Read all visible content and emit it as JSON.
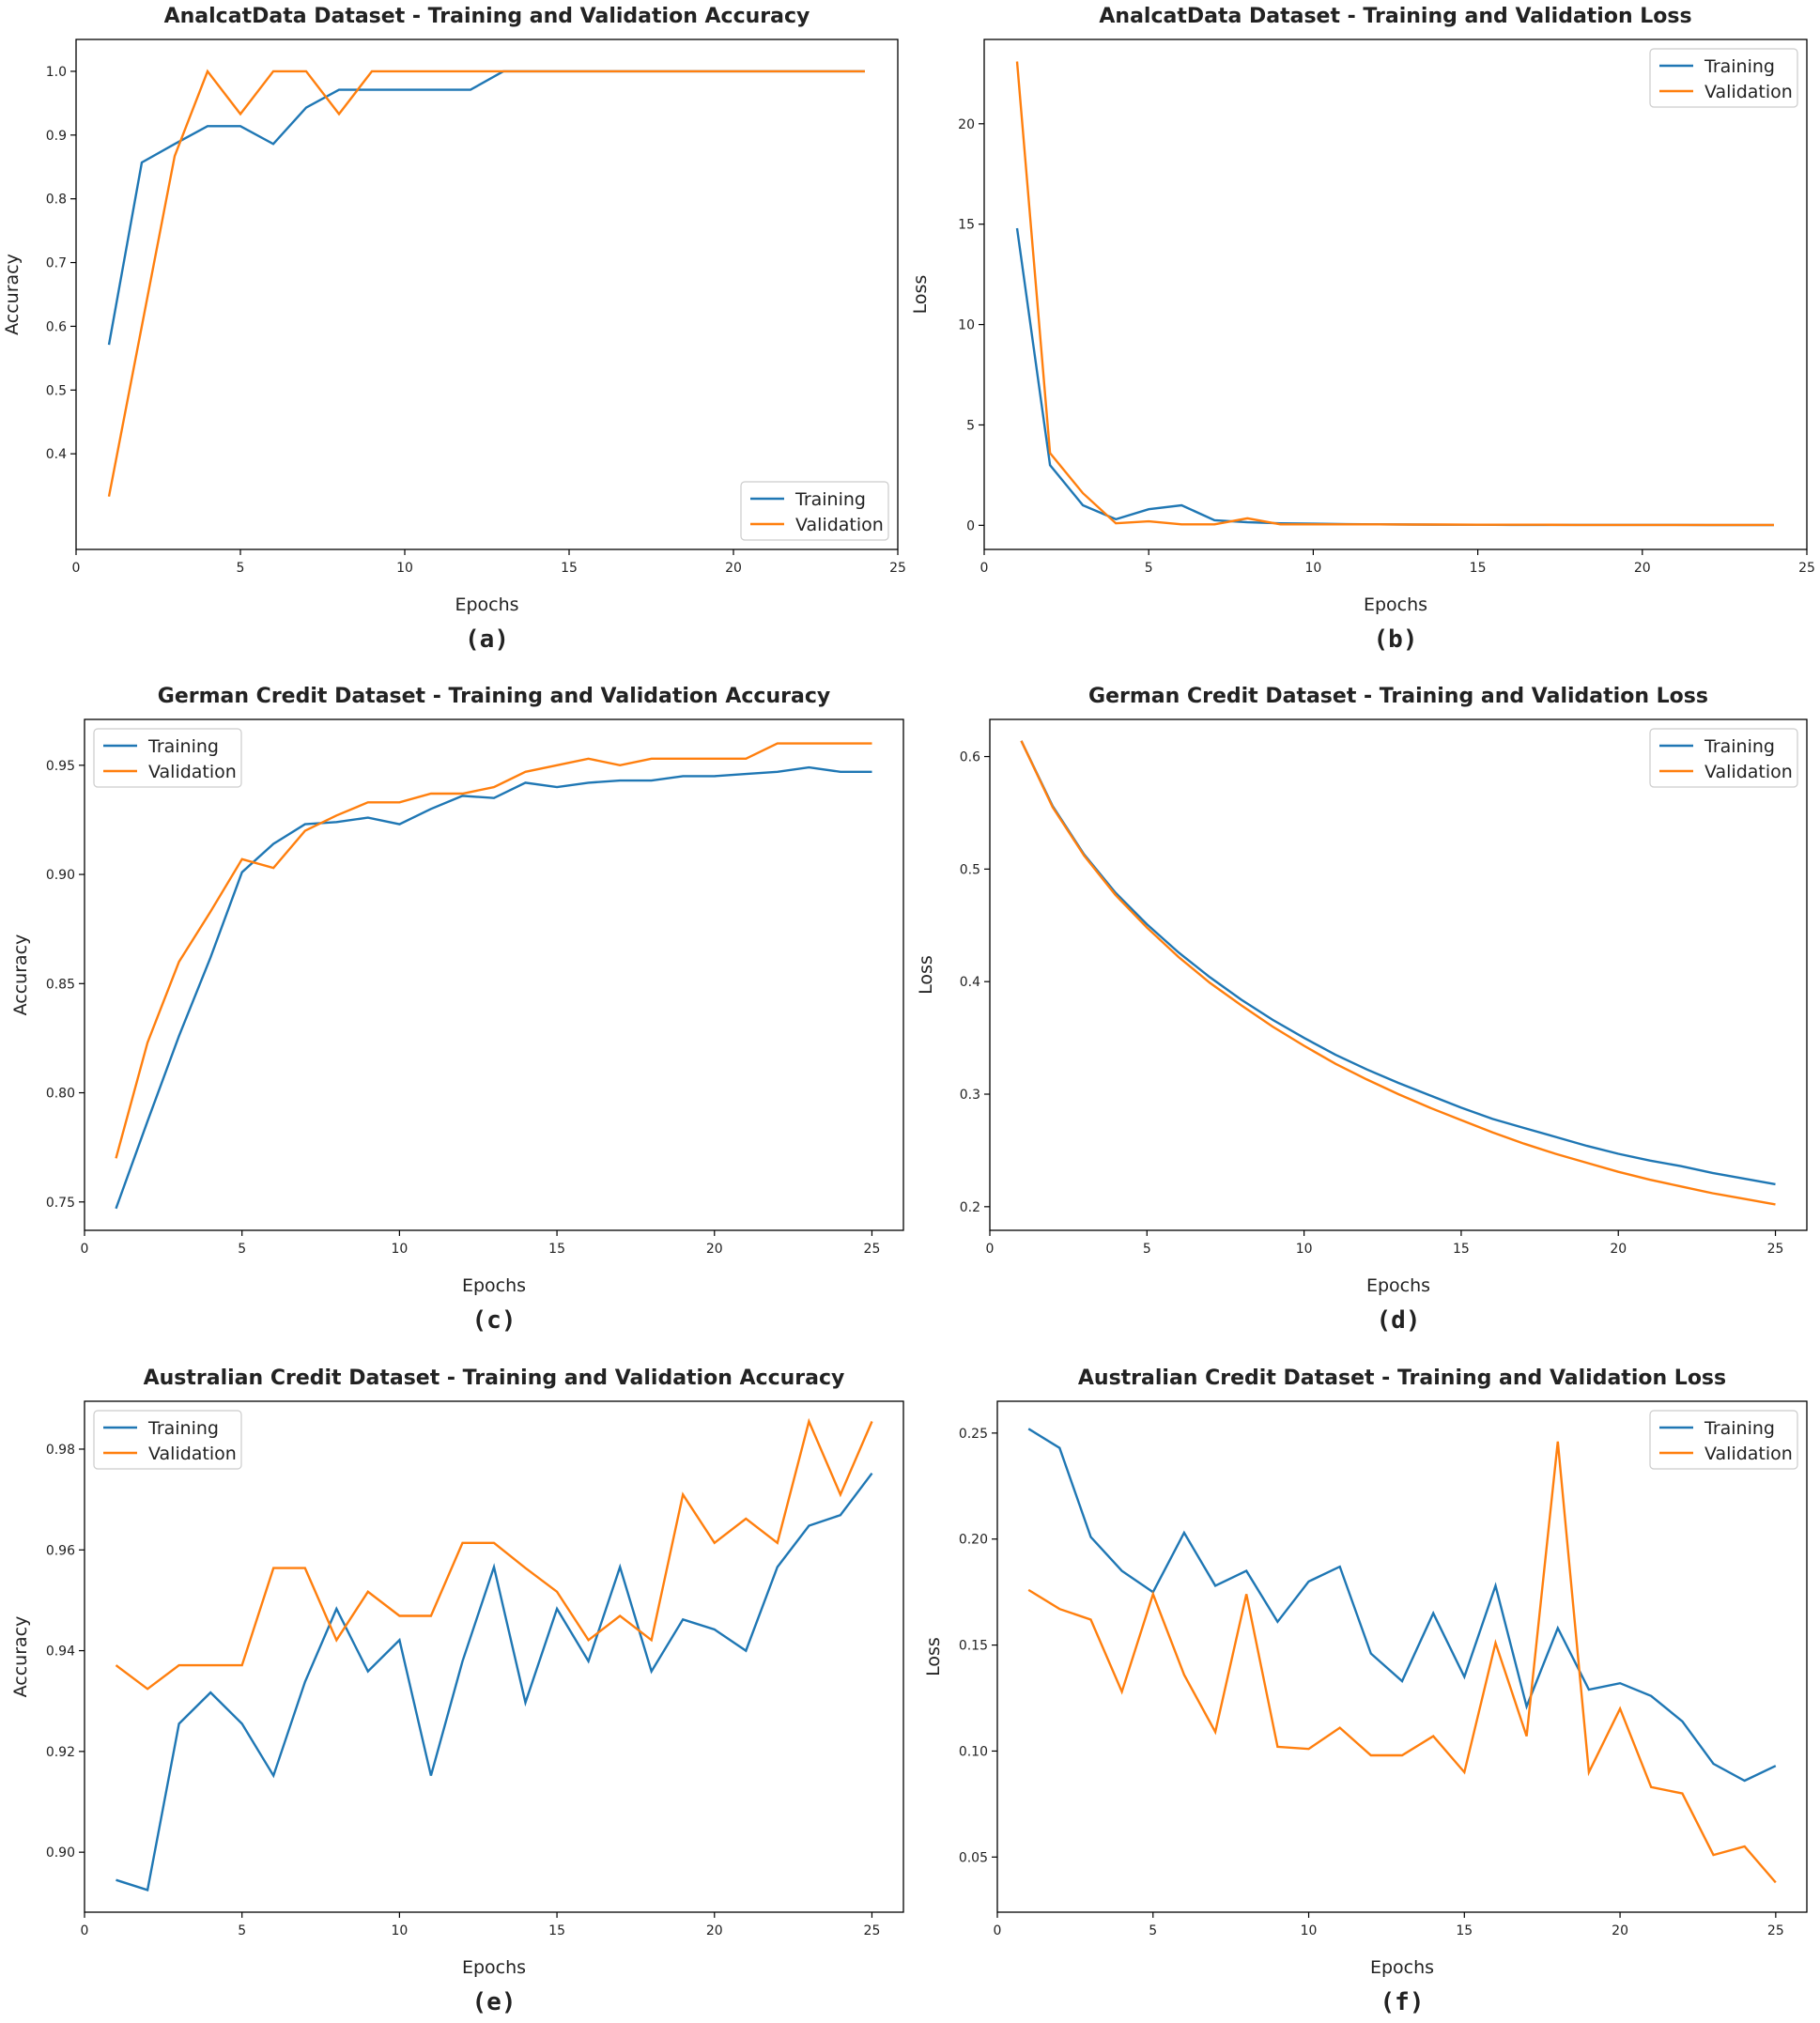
{
  "colors": {
    "training": "#1f77b4",
    "validation": "#ff7f0e",
    "axis": "#000000",
    "text": "#222222"
  },
  "chart_data": [
    {
      "id": "a",
      "type": "line",
      "panel_label": "(a)",
      "title": "AnalcatData Dataset - Training and Validation Accuracy",
      "xlabel": "Epochs",
      "ylabel": "Accuracy",
      "xlim": [
        0,
        25
      ],
      "ylim": [
        0.25,
        1.05
      ],
      "xticks": [
        0,
        5,
        10,
        15,
        20,
        25
      ],
      "yticks": [
        0.4,
        0.5,
        0.6,
        0.7,
        0.8,
        0.9,
        1.0
      ],
      "ytick_decimals": 1,
      "legend_loc": "lower-right",
      "x": [
        1,
        2,
        3,
        4,
        5,
        6,
        7,
        8,
        9,
        10,
        11,
        12,
        13,
        14,
        15,
        16,
        17,
        18,
        19,
        20,
        21,
        22,
        23,
        24
      ],
      "series": [
        {
          "name": "Training",
          "color_key": "training",
          "values": [
            0.571,
            0.857,
            0.886,
            0.914,
            0.914,
            0.886,
            0.943,
            0.971,
            0.971,
            0.971,
            0.971,
            0.971,
            1.0,
            1.0,
            1.0,
            1.0,
            1.0,
            1.0,
            1.0,
            1.0,
            1.0,
            1.0,
            1.0,
            1.0
          ]
        },
        {
          "name": "Validation",
          "color_key": "validation",
          "values": [
            0.333,
            0.6,
            0.867,
            1.0,
            0.933,
            1.0,
            1.0,
            0.933,
            1.0,
            1.0,
            1.0,
            1.0,
            1.0,
            1.0,
            1.0,
            1.0,
            1.0,
            1.0,
            1.0,
            1.0,
            1.0,
            1.0,
            1.0,
            1.0
          ]
        }
      ]
    },
    {
      "id": "b",
      "type": "line",
      "panel_label": "(b)",
      "title": "AnalcatData Dataset - Training and Validation Loss",
      "xlabel": "Epochs",
      "ylabel": "Loss",
      "xlim": [
        0,
        25
      ],
      "ylim": [
        -1.2,
        24.2
      ],
      "xticks": [
        0,
        5,
        10,
        15,
        20,
        25
      ],
      "yticks": [
        0,
        5,
        10,
        15,
        20
      ],
      "ytick_decimals": 0,
      "legend_loc": "top-right",
      "x": [
        1,
        2,
        3,
        4,
        5,
        6,
        7,
        8,
        9,
        10,
        11,
        12,
        13,
        14,
        15,
        16,
        17,
        18,
        19,
        20,
        21,
        22,
        23,
        24
      ],
      "series": [
        {
          "name": "Training",
          "color_key": "training",
          "values": [
            14.8,
            3.0,
            1.0,
            0.3,
            0.8,
            1.0,
            0.25,
            0.15,
            0.1,
            0.08,
            0.06,
            0.05,
            0.04,
            0.03,
            0.03,
            0.02,
            0.02,
            0.02,
            0.02,
            0.02,
            0.02,
            0.01,
            0.01,
            0.01
          ]
        },
        {
          "name": "Validation",
          "color_key": "validation",
          "values": [
            23.1,
            3.6,
            1.6,
            0.1,
            0.2,
            0.05,
            0.05,
            0.35,
            0.05,
            0.05,
            0.05,
            0.05,
            0.04,
            0.04,
            0.03,
            0.03,
            0.03,
            0.02,
            0.02,
            0.02,
            0.02,
            0.02,
            0.02,
            0.02
          ]
        }
      ]
    },
    {
      "id": "c",
      "type": "line",
      "panel_label": "(c)",
      "title": "German Credit Dataset - Training and Validation Accuracy",
      "xlabel": "Epochs",
      "ylabel": "Accuracy",
      "xlim": [
        0,
        26
      ],
      "ylim": [
        0.737,
        0.971
      ],
      "xticks": [
        0,
        5,
        10,
        15,
        20,
        25
      ],
      "yticks": [
        0.75,
        0.8,
        0.85,
        0.9,
        0.95
      ],
      "ytick_decimals": 2,
      "legend_loc": "top-left",
      "x": [
        1,
        2,
        3,
        4,
        5,
        6,
        7,
        8,
        9,
        10,
        11,
        12,
        13,
        14,
        15,
        16,
        17,
        18,
        19,
        20,
        21,
        22,
        23,
        24,
        25
      ],
      "series": [
        {
          "name": "Training",
          "color_key": "training",
          "values": [
            0.747,
            0.787,
            0.826,
            0.862,
            0.901,
            0.914,
            0.923,
            0.924,
            0.926,
            0.923,
            0.93,
            0.936,
            0.935,
            0.942,
            0.94,
            0.942,
            0.943,
            0.943,
            0.945,
            0.945,
            0.946,
            0.947,
            0.949,
            0.947,
            0.947
          ]
        },
        {
          "name": "Validation",
          "color_key": "validation",
          "values": [
            0.77,
            0.823,
            0.86,
            0.883,
            0.907,
            0.903,
            0.92,
            0.927,
            0.933,
            0.933,
            0.937,
            0.937,
            0.94,
            0.947,
            0.95,
            0.953,
            0.95,
            0.953,
            0.953,
            0.953,
            0.953,
            0.96,
            0.96,
            0.96,
            0.96
          ]
        }
      ]
    },
    {
      "id": "d",
      "type": "line",
      "panel_label": "(d)",
      "title": "German Credit Dataset - Training and Validation Loss",
      "xlabel": "Epochs",
      "ylabel": "Loss",
      "xlim": [
        0,
        26
      ],
      "ylim": [
        0.179,
        0.633
      ],
      "xticks": [
        0,
        5,
        10,
        15,
        20,
        25
      ],
      "yticks": [
        0.2,
        0.3,
        0.4,
        0.5,
        0.6
      ],
      "ytick_decimals": 1,
      "legend_loc": "top-right",
      "x": [
        1,
        2,
        3,
        4,
        5,
        6,
        7,
        8,
        9,
        10,
        11,
        12,
        13,
        14,
        15,
        16,
        17,
        18,
        19,
        20,
        21,
        22,
        23,
        24,
        25
      ],
      "series": [
        {
          "name": "Training",
          "color_key": "training",
          "values": [
            0.614,
            0.556,
            0.513,
            0.479,
            0.451,
            0.426,
            0.404,
            0.384,
            0.366,
            0.35,
            0.335,
            0.322,
            0.31,
            0.299,
            0.288,
            0.278,
            0.27,
            0.262,
            0.254,
            0.247,
            0.241,
            0.236,
            0.23,
            0.225,
            0.22
          ]
        },
        {
          "name": "Validation",
          "color_key": "validation",
          "values": [
            0.614,
            0.555,
            0.512,
            0.477,
            0.448,
            0.422,
            0.399,
            0.379,
            0.36,
            0.343,
            0.327,
            0.313,
            0.3,
            0.288,
            0.277,
            0.266,
            0.256,
            0.247,
            0.239,
            0.231,
            0.224,
            0.218,
            0.212,
            0.207,
            0.202
          ]
        }
      ]
    },
    {
      "id": "e",
      "type": "line",
      "panel_label": "(e)",
      "title": "Australian Credit Dataset - Training and Validation Accuracy",
      "xlabel": "Epochs",
      "ylabel": "Accuracy",
      "xlim": [
        0,
        26
      ],
      "ylim": [
        0.8881,
        0.9895
      ],
      "xticks": [
        0,
        5,
        10,
        15,
        20,
        25
      ],
      "yticks": [
        0.9,
        0.92,
        0.94,
        0.96,
        0.98
      ],
      "ytick_decimals": 2,
      "legend_loc": "top-left",
      "x": [
        1,
        2,
        3,
        4,
        5,
        6,
        7,
        8,
        9,
        10,
        11,
        12,
        13,
        14,
        15,
        16,
        17,
        18,
        19,
        20,
        21,
        22,
        23,
        24,
        25
      ],
      "series": [
        {
          "name": "Training",
          "color_key": "training",
          "values": [
            0.8945,
            0.8925,
            0.9255,
            0.9317,
            0.9255,
            0.9152,
            0.9338,
            0.9483,
            0.9359,
            0.9421,
            0.9152,
            0.9379,
            0.9566,
            0.9297,
            0.9483,
            0.9379,
            0.9566,
            0.9359,
            0.9462,
            0.9442,
            0.94,
            0.9566,
            0.9648,
            0.9669,
            0.9752
          ]
        },
        {
          "name": "Validation",
          "color_key": "validation",
          "values": [
            0.9371,
            0.9324,
            0.9371,
            0.9371,
            0.9371,
            0.9564,
            0.9564,
            0.9421,
            0.9517,
            0.9469,
            0.9469,
            0.9614,
            0.9614,
            0.9564,
            0.9517,
            0.9421,
            0.9469,
            0.9421,
            0.971,
            0.9614,
            0.9662,
            0.9614,
            0.9855,
            0.971,
            0.9855
          ]
        }
      ]
    },
    {
      "id": "f",
      "type": "line",
      "panel_label": "(f)",
      "title": "Australian Credit Dataset - Training and Validation Loss",
      "xlabel": "Epochs",
      "ylabel": "Loss",
      "xlim": [
        0,
        26
      ],
      "ylim": [
        0.024,
        0.265
      ],
      "xticks": [
        0,
        5,
        10,
        15,
        20,
        25
      ],
      "yticks": [
        0.05,
        0.1,
        0.15,
        0.2,
        0.25
      ],
      "ytick_decimals": 2,
      "legend_loc": "top-right",
      "x": [
        1,
        2,
        3,
        4,
        5,
        6,
        7,
        8,
        9,
        10,
        11,
        12,
        13,
        14,
        15,
        16,
        17,
        18,
        19,
        20,
        21,
        22,
        23,
        24,
        25
      ],
      "series": [
        {
          "name": "Training",
          "color_key": "training",
          "values": [
            0.252,
            0.243,
            0.201,
            0.185,
            0.175,
            0.203,
            0.178,
            0.185,
            0.161,
            0.18,
            0.187,
            0.146,
            0.133,
            0.165,
            0.135,
            0.178,
            0.121,
            0.158,
            0.129,
            0.132,
            0.126,
            0.114,
            0.094,
            0.086,
            0.093
          ]
        },
        {
          "name": "Validation",
          "color_key": "validation",
          "values": [
            0.176,
            0.167,
            0.162,
            0.128,
            0.174,
            0.136,
            0.109,
            0.174,
            0.102,
            0.101,
            0.111,
            0.098,
            0.098,
            0.107,
            0.09,
            0.151,
            0.107,
            0.246,
            0.09,
            0.12,
            0.083,
            0.08,
            0.051,
            0.055,
            0.038
          ]
        }
      ]
    }
  ]
}
